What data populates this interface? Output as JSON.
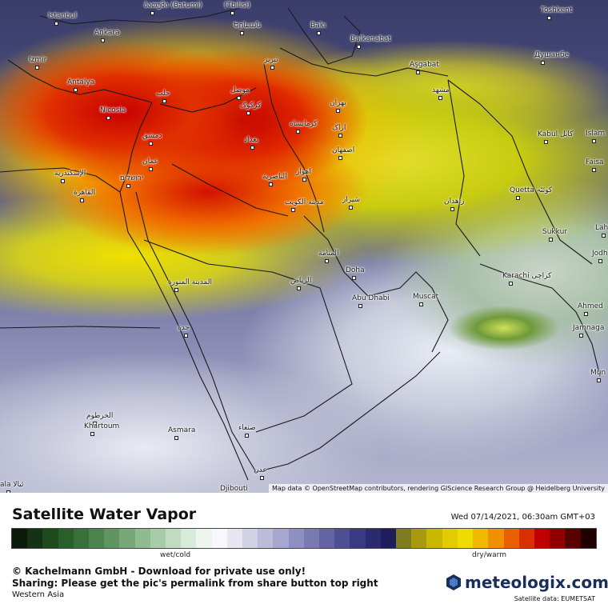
{
  "map": {
    "cities": [
      {
        "label": "Istanbul",
        "rtl": false
      },
      {
        "label": "Ankara",
        "rtl": false
      },
      {
        "label": "Izmir",
        "rtl": false
      },
      {
        "label": "Antalya",
        "rtl": false
      },
      {
        "label": "Nicosia",
        "rtl": false
      },
      {
        "label": "حلب",
        "rtl": true
      },
      {
        "label": "دمشق",
        "rtl": true
      },
      {
        "label": "عمان",
        "rtl": true
      },
      {
        "label": "ירושלים",
        "rtl": true
      },
      {
        "label": "الإسكندرية",
        "rtl": true
      },
      {
        "label": "القاهرة",
        "rtl": true
      },
      {
        "label": "ბათუმი (Batumi)",
        "rtl": false
      },
      {
        "label": "(Tbilisi)",
        "rtl": false
      },
      {
        "label": "Երևան",
        "rtl": false
      },
      {
        "label": "Bakı",
        "rtl": false
      },
      {
        "label": "Balkanabat",
        "rtl": false
      },
      {
        "label": "Aşgabat",
        "rtl": false
      },
      {
        "label": "Toshkent",
        "rtl": false
      },
      {
        "label": "Душанбе",
        "rtl": false
      },
      {
        "label": "موصل",
        "rtl": true
      },
      {
        "label": "تبریز",
        "rtl": true
      },
      {
        "label": "کرکوک",
        "rtl": true
      },
      {
        "label": "کرمانشاه",
        "rtl": true
      },
      {
        "label": "بغداد",
        "rtl": true
      },
      {
        "label": "تهران",
        "rtl": true
      },
      {
        "label": "مشهد",
        "rtl": true
      },
      {
        "label": "اراک",
        "rtl": true
      },
      {
        "label": "اصفهان",
        "rtl": true
      },
      {
        "label": "اهواز",
        "rtl": true
      },
      {
        "label": "الناصرية",
        "rtl": true
      },
      {
        "label": "شیراز",
        "rtl": true
      },
      {
        "label": "مدينة الكويت",
        "rtl": true
      },
      {
        "label": "زاهدان",
        "rtl": true
      },
      {
        "label": "Kabul کابل",
        "rtl": false
      },
      {
        "label": "Quetta کوئٹہ",
        "rtl": false
      },
      {
        "label": "Islam",
        "rtl": false
      },
      {
        "label": "Faisa",
        "rtl": false
      },
      {
        "label": "Sukkur",
        "rtl": false
      },
      {
        "label": "Lahi",
        "rtl": false
      },
      {
        "label": "Jodh",
        "rtl": false
      },
      {
        "label": "Karachi کراچی",
        "rtl": false
      },
      {
        "label": "Ahmed",
        "rtl": false
      },
      {
        "label": "Jamnaga",
        "rtl": false
      },
      {
        "label": "Mun",
        "rtl": false
      },
      {
        "label": "المنامة",
        "rtl": true
      },
      {
        "label": "Doha",
        "rtl": false
      },
      {
        "label": "Abu Dhabi",
        "rtl": false
      },
      {
        "label": "Muscat",
        "rtl": false
      },
      {
        "label": "الرياض",
        "rtl": true
      },
      {
        "label": "المدينة المنورة",
        "rtl": true
      },
      {
        "label": "جدة",
        "rtl": true
      },
      {
        "label": "الخرطوم",
        "rtl": true
      },
      {
        "label": "Khartoum",
        "rtl": false
      },
      {
        "label": "Asmara",
        "rtl": false
      },
      {
        "label": "صنعاء",
        "rtl": true
      },
      {
        "label": "عدن",
        "rtl": true
      },
      {
        "label": "Djibouti",
        "rtl": false
      },
      {
        "label": "ala ئيالا",
        "rtl": false
      }
    ],
    "attribution": "Map data © OpenStreetMap contributors, rendering GIScience Research Group @ Heidelberg University"
  },
  "footer": {
    "title": "Satellite Water Vapor",
    "timestamp": "Wed 07/14/2021, 06:30am GMT+03",
    "scale_label_wet": "wet/cold",
    "scale_label_dry": "dry/warm",
    "copyright": "© Kachelmann GmbH - Download for private use only!",
    "sharing": "Sharing: Please get the pic's permalink from share button top right",
    "region": "Western Asia",
    "brand": "meteologix.com",
    "satellite_credit": "Satellite data: EUMETSAT"
  },
  "colors": {
    "scale": [
      "#0a1a0a",
      "#143214",
      "#1e4a1e",
      "#2a5e2a",
      "#3a703a",
      "#4c824c",
      "#609460",
      "#78a878",
      "#90ba90",
      "#a8cca8",
      "#c0dcc0",
      "#d8ead8",
      "#eef4ee",
      "#f8f8fc",
      "#e6e6f2",
      "#d2d2e6",
      "#bcbcda",
      "#a6a6ce",
      "#9090c0",
      "#7a7ab2",
      "#6464a2",
      "#4e4e92",
      "#3a3a82",
      "#2a2a70",
      "#1e1e5c",
      "#807a20",
      "#a89a10",
      "#c8b800",
      "#e0cc00",
      "#eedc00",
      "#f0b800",
      "#f09000",
      "#e86000",
      "#d83000",
      "#c00000",
      "#900000",
      "#580000",
      "#200000"
    ]
  }
}
